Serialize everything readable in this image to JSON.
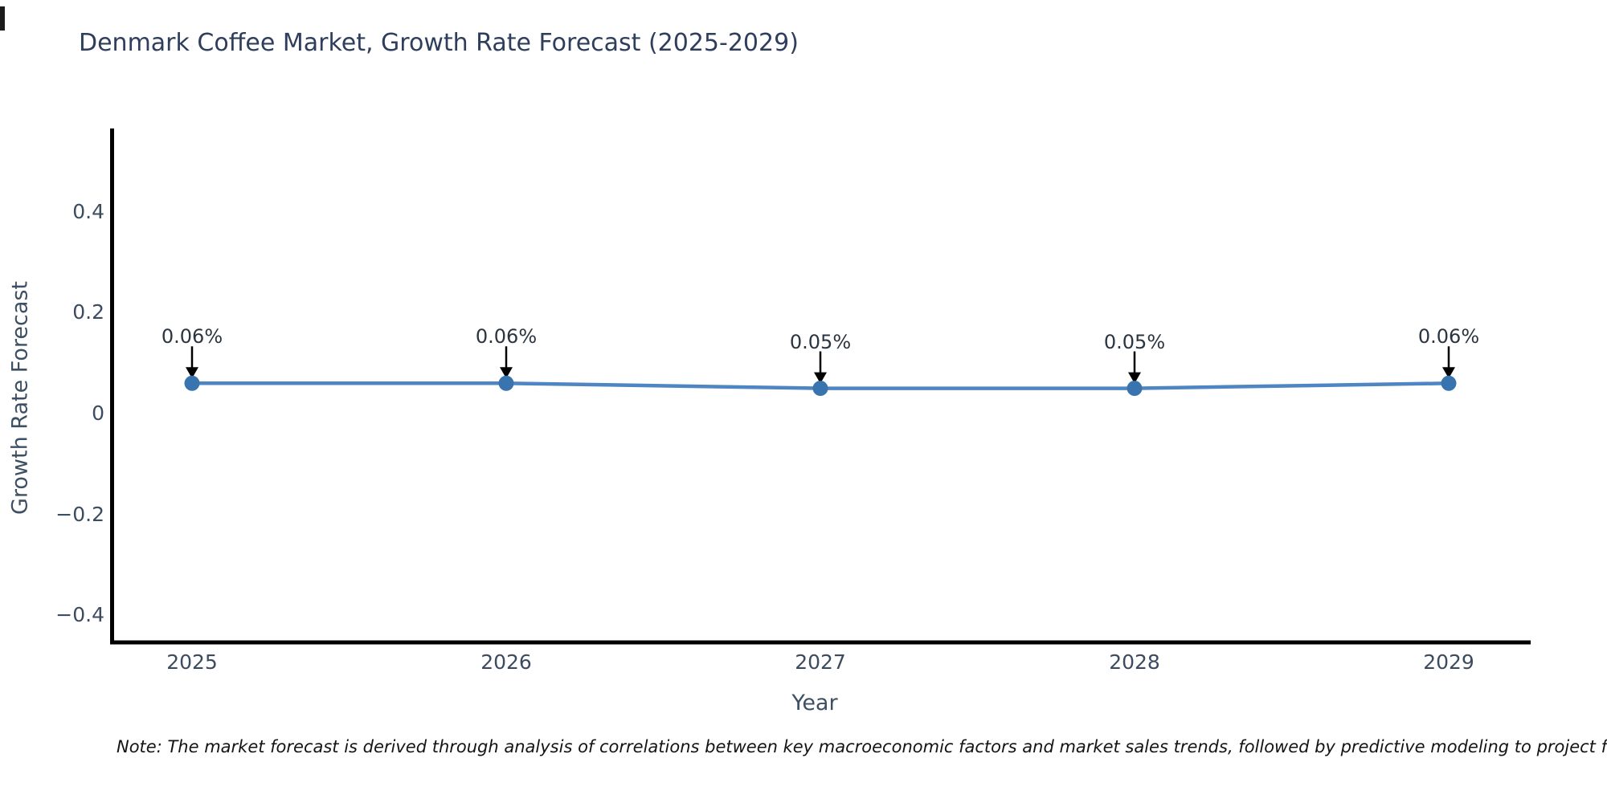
{
  "title": "Denmark Coffee Market, Growth Rate Forecast (2025-2029)",
  "note": "Note: The market forecast is derived through analysis of correlations between key macroeconomic factors and market sales trends, followed by predictive modeling to project future sales.",
  "chart_data": {
    "type": "line",
    "title": "Denmark Coffee Market, Growth Rate Forecast (2025-2029)",
    "xlabel": "Year",
    "ylabel": "Growth Rate Forecast",
    "x": [
      2025,
      2026,
      2027,
      2028,
      2029
    ],
    "x_labels": [
      "2025",
      "2026",
      "2027",
      "2028",
      "2029"
    ],
    "series": [
      {
        "name": "Growth Rate Forecast",
        "values": [
          0.06,
          0.06,
          0.05,
          0.05,
          0.06
        ],
        "point_labels": [
          "0.06%",
          "0.06%",
          "0.05%",
          "0.05%",
          "0.06%"
        ]
      }
    ],
    "yticks": [
      0.4,
      0.2,
      0,
      -0.2,
      -0.4
    ],
    "ytick_labels": [
      "0.4",
      "0.2",
      "0",
      "−0.2",
      "−0.4"
    ],
    "ylim": [
      -0.45,
      0.57
    ],
    "grid": false,
    "legend": false,
    "annotations_have_arrows": true,
    "colors": {
      "line": "#4d86c2",
      "marker": "#3a74ae",
      "spine": "#000000",
      "title_text": "#2e3e5c",
      "tick_text": "#3d4b5f",
      "annotation_text": "#2b3540",
      "arrow": "#000000"
    }
  }
}
